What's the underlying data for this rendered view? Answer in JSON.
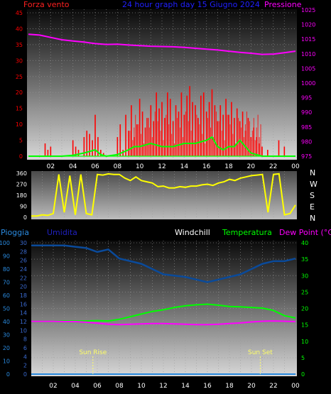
{
  "header": {
    "left_label": "Forza vento",
    "center_label": "24 hour graph day  15 Giugno 2024",
    "right_label": "Pressione"
  },
  "bottom_header": {
    "pioggia": "Pioggia",
    "umidita": "Umidita",
    "windchill": "Windchill",
    "temperatura": "Temperatura",
    "dew_point": "Dew Point (°C)"
  },
  "compass": [
    "N",
    "W",
    "S",
    "E",
    "N"
  ],
  "x_ticks": [
    "02",
    "04",
    "06",
    "08",
    "10",
    "12",
    "14",
    "16",
    "18",
    "20",
    "22",
    "00"
  ],
  "annotations": {
    "sunrise": "Sun Rise",
    "sunset": "Sun Set"
  },
  "colors": {
    "wind": "#ff0000",
    "gust": "#00ff00",
    "pressure": "#ff00ff",
    "direction": "#ffff00",
    "temperature": "#00ff00",
    "dewpoint": "#ff00ff",
    "humidity": "#0a4a9a",
    "rain": "#2a8adf",
    "windchill": "#ffffff"
  },
  "chart_data": [
    {
      "type": "bar",
      "name": "wind-pressure",
      "left_axis": {
        "ticks": [
          "0",
          "5",
          "10",
          "15",
          "20",
          "25",
          "30",
          "35",
          "40",
          "45"
        ],
        "ylim": [
          0,
          45
        ]
      },
      "right_axis": {
        "ticks": [
          "975",
          "980",
          "985",
          "990",
          "995",
          "1000",
          "1005",
          "1010",
          "1015",
          "1020",
          "1025"
        ],
        "ylim": [
          975,
          1025
        ]
      },
      "wind_speed_x": [
        1.5,
        1.75,
        2.0,
        4.0,
        4.25,
        4.5,
        5.0,
        5.25,
        5.5,
        5.75,
        6.0,
        6.25,
        6.5,
        6.75,
        8.0,
        8.25,
        8.5,
        8.75,
        9.0,
        9.25,
        9.5,
        9.75,
        10.0,
        10.25,
        10.5,
        10.75,
        11.0,
        11.25,
        11.5,
        11.75,
        12.0,
        12.25,
        12.5,
        12.75,
        13.0,
        13.25,
        13.5,
        13.75,
        14.0,
        14.25,
        14.5,
        14.75,
        15.0,
        15.25,
        15.5,
        15.75,
        16.0,
        16.25,
        16.5,
        16.75,
        17.0,
        17.25,
        17.5,
        17.75,
        18.0,
        18.25,
        18.5,
        18.75,
        19.0,
        19.25,
        19.5,
        19.75,
        20.0,
        20.25,
        20.5,
        20.75,
        21.0,
        21.5,
        22.5,
        23.0
      ],
      "wind_speed": [
        4,
        2,
        3,
        5,
        3,
        2,
        6,
        8,
        7,
        5,
        13,
        6,
        2,
        1,
        6,
        10,
        2,
        13,
        8,
        16,
        6,
        10,
        18,
        14,
        9,
        12,
        16,
        11,
        20,
        15,
        17,
        12,
        20,
        18,
        11,
        16,
        14,
        20,
        13,
        19,
        22,
        17,
        16,
        12,
        19,
        20,
        14,
        17,
        21,
        16,
        11,
        16,
        13,
        18,
        13,
        17,
        12,
        15,
        11,
        14,
        8,
        12,
        6,
        9,
        6,
        4,
        3,
        2,
        5,
        3
      ],
      "gust_x": [
        0,
        1,
        2,
        3,
        4,
        5,
        5.5,
        6,
        6.5,
        7,
        8,
        9,
        9.5,
        10,
        11,
        12,
        13,
        14,
        15,
        16,
        16.5,
        17,
        17.5,
        18,
        18.5,
        19,
        19.5,
        20,
        20.5,
        21,
        22,
        23,
        24
      ],
      "gust": [
        0,
        0,
        0,
        0,
        0.3,
        1,
        1.5,
        2,
        0.5,
        0,
        0.5,
        2,
        3,
        3,
        4,
        3,
        3,
        4,
        4,
        5,
        6,
        3,
        2,
        3,
        3,
        5,
        3,
        1,
        0.5,
        0,
        0,
        0,
        0
      ],
      "pressure_x": [
        0,
        1,
        2,
        3,
        4,
        5,
        6,
        7,
        8,
        9,
        10,
        11,
        12,
        13,
        14,
        15,
        16,
        17,
        18,
        19,
        20,
        21,
        22,
        23,
        24
      ],
      "pressure": [
        1016.7,
        1016.4,
        1015.6,
        1014.8,
        1014.4,
        1014.0,
        1013.5,
        1013.2,
        1013.3,
        1013.0,
        1012.8,
        1012.6,
        1012.5,
        1012.4,
        1012.2,
        1011.9,
        1011.6,
        1011.3,
        1010.9,
        1010.5,
        1010.2,
        1009.8,
        1009.9,
        1010.4,
        1010.9
      ]
    },
    {
      "type": "line",
      "name": "wind-direction",
      "y_ticks": [
        "0",
        "90",
        "180",
        "270",
        "360"
      ],
      "ylim": [
        0,
        360
      ],
      "x": [
        0,
        0.5,
        1,
        1.5,
        2,
        2.5,
        3,
        3.5,
        4,
        4.5,
        5,
        5.5,
        6,
        6.5,
        7,
        7.5,
        8,
        8.5,
        9,
        9.5,
        10,
        10.5,
        11,
        11.5,
        12,
        12.5,
        13,
        13.5,
        14,
        14.5,
        15,
        15.5,
        16,
        16.5,
        17,
        17.5,
        18,
        18.5,
        19,
        19.5,
        20,
        20.5,
        21,
        21.5,
        22,
        22.5,
        23,
        23.5,
        24
      ],
      "values": [
        10,
        10,
        20,
        15,
        30,
        350,
        40,
        340,
        20,
        350,
        30,
        20,
        350,
        345,
        355,
        350,
        350,
        320,
        300,
        330,
        300,
        290,
        280,
        250,
        255,
        240,
        240,
        250,
        245,
        255,
        255,
        265,
        270,
        260,
        280,
        290,
        310,
        300,
        320,
        330,
        340,
        345,
        350,
        40,
        350,
        355,
        20,
        30,
        100
      ]
    },
    {
      "type": "line",
      "name": "temperature-humidity-rain",
      "left_axis_rain": {
        "ticks": [
          "0",
          "2",
          "4",
          "6",
          "8",
          "10",
          "12",
          "14",
          "16",
          "18",
          "20",
          "22",
          "24",
          "26",
          "28",
          "30"
        ],
        "ylim": [
          0,
          30
        ]
      },
      "left_axis_humidity": {
        "ticks": [
          "0",
          "10",
          "20",
          "30",
          "40",
          "50",
          "60",
          "70",
          "80",
          "90",
          "100"
        ],
        "ylim": [
          0,
          100
        ]
      },
      "right_axis": {
        "ticks": [
          "0",
          "5",
          "10",
          "15",
          "20",
          "25",
          "30",
          "35",
          "40"
        ],
        "ylim": [
          0,
          40
        ]
      },
      "x": [
        0,
        1,
        2,
        3,
        4,
        5,
        6,
        7,
        8,
        9,
        10,
        11,
        12,
        13,
        14,
        15,
        16,
        17,
        18,
        19,
        20,
        21,
        22,
        23,
        24
      ],
      "series": [
        {
          "name": "Umidita",
          "values": [
            98,
            98,
            98,
            98,
            97,
            96,
            93,
            95,
            88,
            86,
            84,
            80,
            76,
            75,
            74,
            72,
            70,
            72,
            74,
            76,
            80,
            84,
            86,
            86,
            88
          ]
        },
        {
          "name": "Temperatura",
          "values": [
            16.2,
            16.2,
            16.2,
            16.2,
            16.2,
            16.2,
            16.3,
            16.2,
            16.7,
            17.5,
            18.3,
            19.1,
            19.6,
            20.3,
            20.8,
            21.1,
            21.3,
            21.0,
            20.6,
            20.5,
            20.3,
            20.1,
            19.4,
            17.8,
            17.1
          ]
        },
        {
          "name": "Dew Point (°C)",
          "values": [
            16.1,
            16.1,
            16.1,
            16.0,
            16.0,
            15.8,
            15.5,
            15.2,
            15.1,
            15.2,
            15.3,
            15.4,
            15.4,
            15.3,
            15.2,
            15.1,
            15.1,
            15.2,
            15.4,
            15.6,
            15.9,
            16.1,
            16.2,
            16.1,
            16.0
          ]
        },
        {
          "name": "Pioggia",
          "values": [
            0,
            0,
            0,
            0,
            0,
            0,
            0,
            0,
            0,
            0,
            0,
            0,
            0,
            0,
            0,
            0,
            0,
            0,
            0,
            0,
            0,
            0,
            0,
            0,
            0
          ]
        }
      ],
      "sunrise_hour": 5.6,
      "sunset_hour": 20.8
    }
  ]
}
